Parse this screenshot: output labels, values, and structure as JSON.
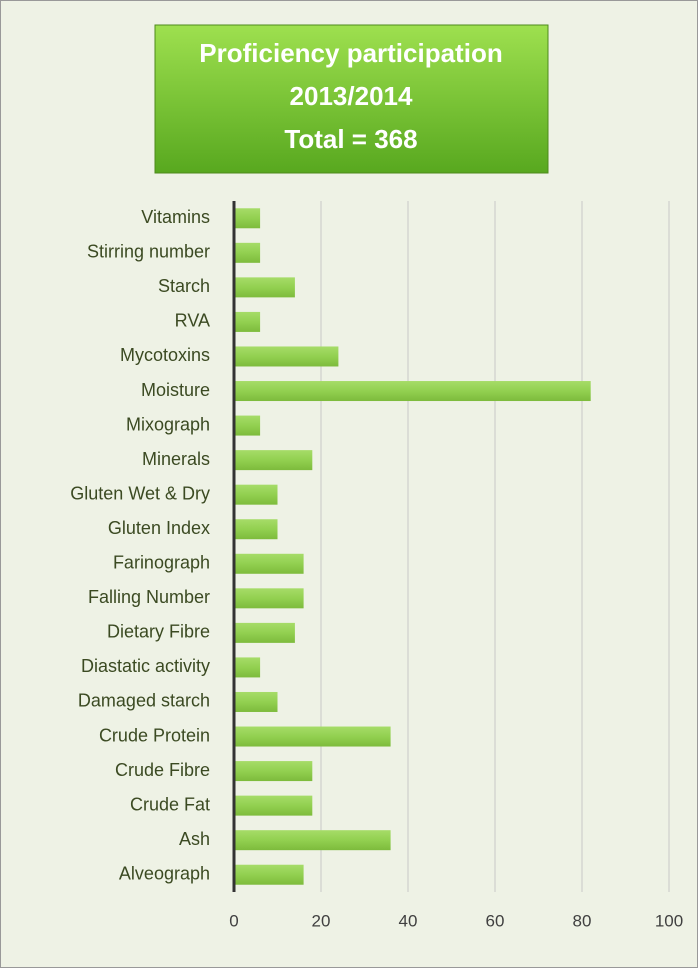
{
  "chart_data": {
    "type": "bar",
    "orientation": "horizontal",
    "title": [
      "Proficiency participation",
      "2013/2014",
      "Total = 368"
    ],
    "categories": [
      "Vitamins",
      "Stirring number",
      "Starch",
      "RVA",
      "Mycotoxins",
      "Moisture",
      "Mixograph",
      "Minerals",
      "Gluten  Wet & Dry",
      "Gluten Index",
      "Farinograph",
      "Falling Number",
      "Dietary Fibre",
      "Diastatic activity",
      "Damaged starch",
      "Crude Protein",
      "Crude Fibre",
      "Crude Fat",
      "Ash",
      "Alveograph"
    ],
    "values": [
      6,
      6,
      14,
      6,
      24,
      82,
      6,
      18,
      10,
      10,
      16,
      16,
      14,
      6,
      10,
      36,
      18,
      18,
      36,
      16
    ],
    "color": "#92d050",
    "xlim": [
      0,
      100
    ],
    "xticks": [
      0,
      20,
      40,
      60,
      80,
      100
    ],
    "grid": true
  }
}
